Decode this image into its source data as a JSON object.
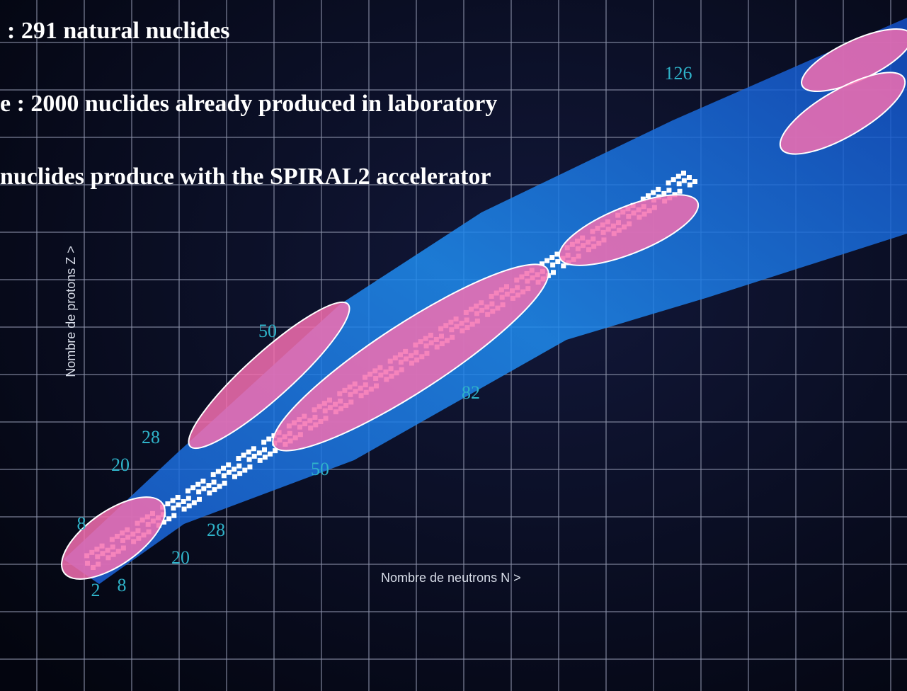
{
  "header": {
    "lines": [
      ": 291 natural nuclides",
      "e : 2000 nuclides already produced in laboratory",
      "nuclides produce with the SPIRAL2 accelerator"
    ]
  },
  "axes": {
    "y_label": "Nombre de protons Z >",
    "x_label": "Nombre de neutrons N >"
  },
  "magic_numbers": {
    "protons": [
      "8",
      "20",
      "28",
      "50"
    ],
    "neutrons": [
      "2",
      "8",
      "20",
      "28",
      "50",
      "82",
      "126"
    ]
  }
}
